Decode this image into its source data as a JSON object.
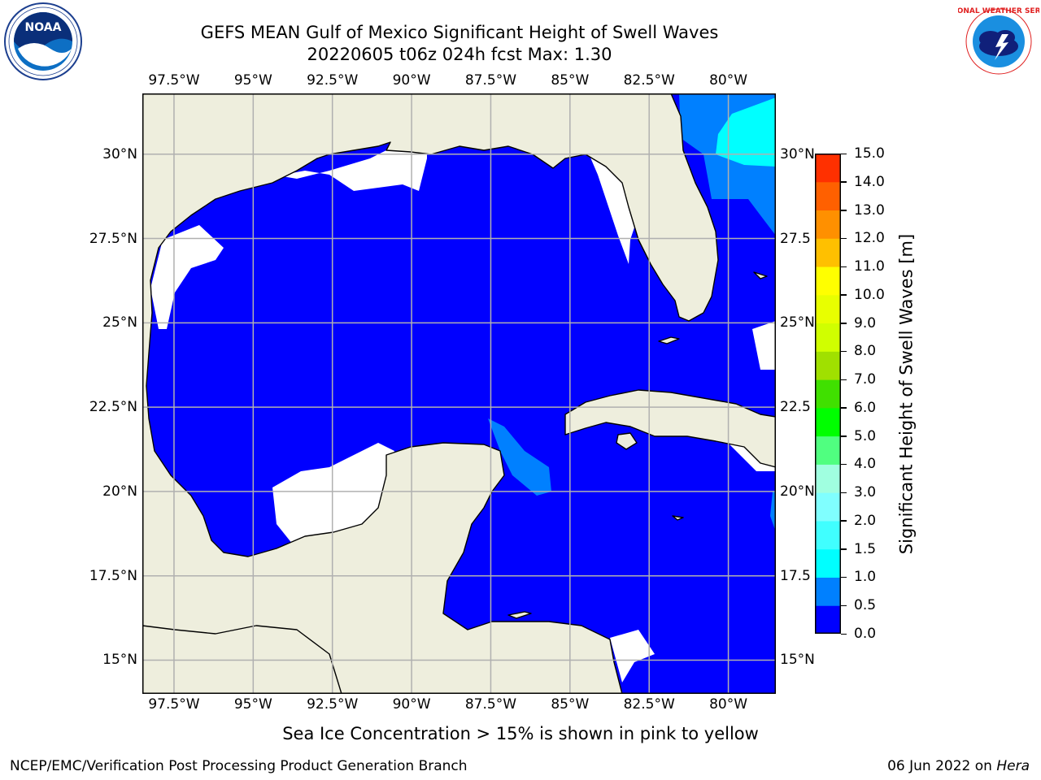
{
  "header": {
    "title_line1": "GEFS MEAN Gulf of Mexico Significant Height of Swell Waves",
    "title_line2": "20220605 t06z 024h fcst   Max: 1.30"
  },
  "logos": {
    "left": "NOAA",
    "left_ring": "NATIONAL OCEANIC AND ATMOSPHERIC ADMINISTRATION · U.S. DEPARTMENT OF COMMERCE",
    "right_ring": "NATIONAL WEATHER SERVICE"
  },
  "map": {
    "lon_range": [
      -98.5,
      -78.5
    ],
    "lat_range": [
      14.0,
      31.8
    ],
    "lon_ticks": [
      "97.5°W",
      "95°W",
      "92.5°W",
      "90°W",
      "87.5°W",
      "85°W",
      "82.5°W",
      "80°W"
    ],
    "lon_values": [
      -97.5,
      -95,
      -92.5,
      -90,
      -87.5,
      -85,
      -82.5,
      -80
    ],
    "lat_ticks_left": [
      "30°N",
      "27.5°N",
      "25°N",
      "22.5°N",
      "20°N",
      "17.5°N",
      "15°N"
    ],
    "lat_ticks_right": [
      "30°N",
      "27.5",
      "25°N",
      "22.5",
      "20°N",
      "17.5",
      "15°N"
    ],
    "lat_values": [
      30,
      27.5,
      25,
      22.5,
      20,
      17.5,
      15
    ],
    "grid": true,
    "colors": {
      "land": "#eeeedd",
      "ocean_low": "#0000ff",
      "ocean_05": "#0080ff",
      "ocean_10": "#00ffff",
      "grid": "#b0b0b0"
    }
  },
  "colorbar": {
    "label": "Significant Height of Swell Waves [m]",
    "tick_labels": [
      "15.0",
      "14.0",
      "13.0",
      "12.0",
      "11.0",
      "10.0",
      "9.0",
      "8.0",
      "7.0",
      "6.0",
      "5.0",
      "4.0",
      "3.0",
      "2.0",
      "1.5",
      "1.0",
      "0.5",
      "0.0"
    ],
    "levels": [
      0.0,
      0.5,
      1.0,
      1.5,
      2.0,
      3.0,
      4.0,
      5.0,
      6.0,
      7.0,
      8.0,
      9.0,
      10.0,
      11.0,
      12.0,
      13.0,
      14.0,
      15.0
    ],
    "colors": [
      "#0000ff",
      "#0080ff",
      "#00ffff",
      "#40ffff",
      "#80ffff",
      "#a0ffe0",
      "#50ff80",
      "#00ff00",
      "#40e000",
      "#a0e000",
      "#d0ff00",
      "#e8ff00",
      "#ffff00",
      "#ffc000",
      "#ff9000",
      "#ff6000",
      "#ff3000",
      "#ff0000"
    ]
  },
  "footer": {
    "note": "Sea Ice Concentration > 15% is shown in pink to yellow",
    "left": "NCEP/EMC/Verification Post Processing Product Generation Branch",
    "right_date": "06 Jun 2022 on ",
    "right_host": "Hera"
  }
}
